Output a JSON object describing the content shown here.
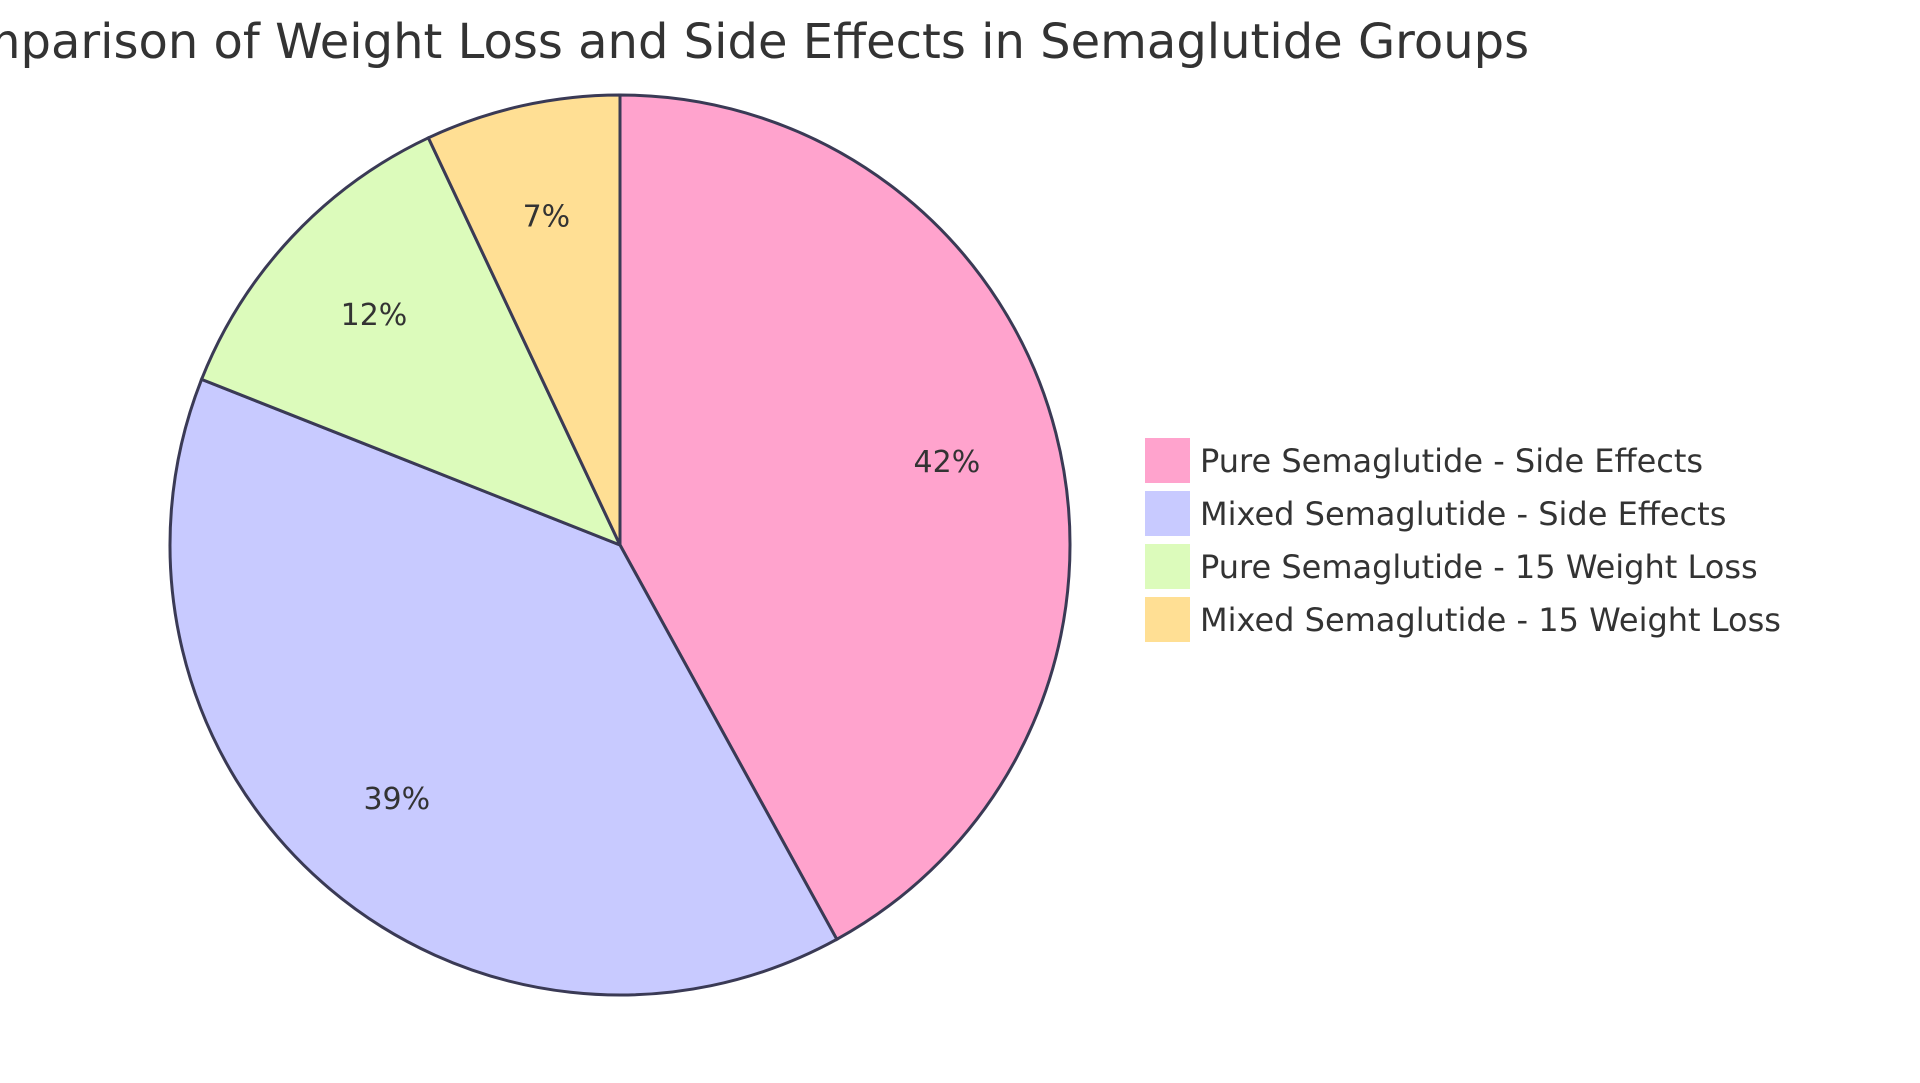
{
  "chart_data": {
    "type": "pie",
    "title": "Comparison of Weight Loss and Side Effects in Semaglutide Groups",
    "slices": [
      {
        "label": "Pure Semaglutide - Side Effects",
        "value": 42,
        "display": "42%",
        "color": "#ffa3cd"
      },
      {
        "label": "Mixed Semaglutide - Side Effects",
        "value": 39,
        "display": "39%",
        "color": "#c8caff"
      },
      {
        "label": "Pure Semaglutide - 15 Weight Loss",
        "value": 12,
        "display": "12%",
        "color": "#dcfbbb"
      },
      {
        "label": "Mixed Semaglutide - 15 Weight Loss",
        "value": 7,
        "display": "7%",
        "color": "#ffdf94"
      }
    ],
    "stroke_color": "#3a3a55",
    "legend_position": "right"
  }
}
